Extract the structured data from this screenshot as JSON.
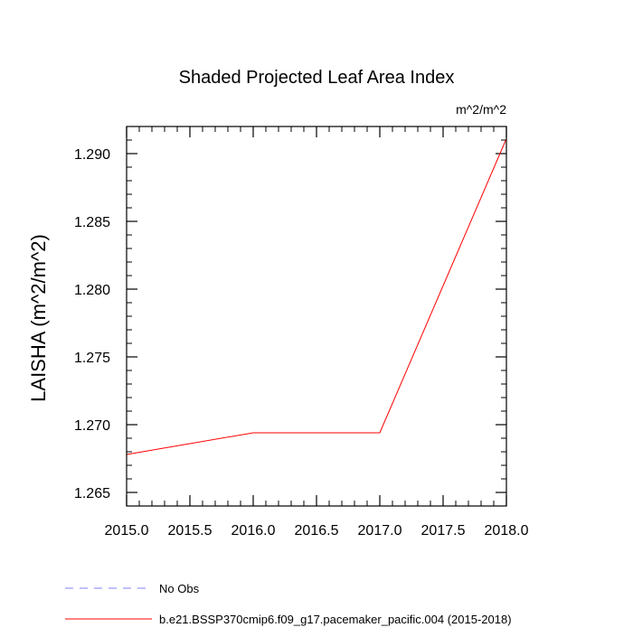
{
  "chart_data": {
    "type": "line",
    "title": "Shaded Projected Leaf Area Index",
    "units_label": "m^2/m^2",
    "ylabel": "LAISHA  (m^2/m^2)",
    "xlabel": "",
    "xlim": [
      2015.0,
      2018.0
    ],
    "ylim": [
      1.264,
      1.292
    ],
    "x_ticks": [
      {
        "value": 2015.0,
        "label": "2015.0"
      },
      {
        "value": 2015.5,
        "label": "2015.5"
      },
      {
        "value": 2016.0,
        "label": "2016.0"
      },
      {
        "value": 2016.5,
        "label": "2016.5"
      },
      {
        "value": 2017.0,
        "label": "2017.0"
      },
      {
        "value": 2017.5,
        "label": "2017.5"
      },
      {
        "value": 2018.0,
        "label": "2018.0"
      }
    ],
    "y_ticks": [
      {
        "value": 1.265,
        "label": "1.265"
      },
      {
        "value": 1.27,
        "label": "1.270"
      },
      {
        "value": 1.275,
        "label": "1.275"
      },
      {
        "value": 1.28,
        "label": "1.280"
      },
      {
        "value": 1.285,
        "label": "1.285"
      },
      {
        "value": 1.29,
        "label": "1.290"
      }
    ],
    "x_minor_step": 0.1,
    "y_minor_step": 0.001,
    "grid": false,
    "legend_position": "bottom-left",
    "series": [
      {
        "name": "No Obs",
        "color": "#8080ff",
        "dash": "dashed",
        "x": [],
        "values": []
      },
      {
        "name": "b.e21.BSSP370cmip6.f09_g17.pacemaker_pacific.004 (2015-2018)",
        "color": "#ff0000",
        "dash": "solid",
        "x": [
          2015.0,
          2016.0,
          2017.0,
          2018.0
        ],
        "values": [
          1.2678,
          1.2694,
          1.2694,
          1.2911
        ]
      }
    ]
  }
}
